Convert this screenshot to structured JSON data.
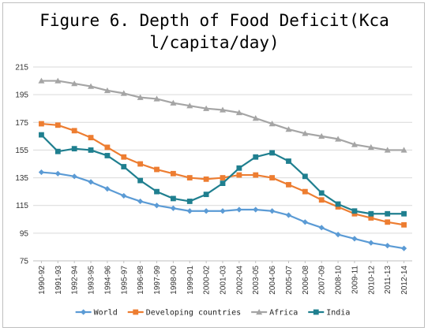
{
  "chart_data": {
    "type": "line",
    "title": "Figure 6. Depth of Food Deficit(Kcal/capita/day)",
    "title_lines": [
      "Figure 6. Depth of Food Deficit(Kca",
      "l/capita/day)"
    ],
    "x": [
      "1990-92",
      "1991-93",
      "1992-94",
      "1993-95",
      "1994-96",
      "1995-97",
      "1996-98",
      "1997-99",
      "1998-00",
      "1999-01",
      "2000-02",
      "2001-03",
      "2002-04",
      "2003-05",
      "2004-06",
      "2005-07",
      "2006-08",
      "2007-09",
      "2008-10",
      "2009-11",
      "2010-12",
      "2011-13",
      "2012-14"
    ],
    "ylim": [
      75,
      215
    ],
    "yticks": [
      75,
      95,
      115,
      135,
      155,
      175,
      195,
      215
    ],
    "grid": true,
    "legend_position": "bottom",
    "series": [
      {
        "name": "World",
        "color": "#5b9bd5",
        "marker": "diamond",
        "values": [
          139,
          138,
          136,
          132,
          127,
          122,
          118,
          115,
          113,
          111,
          111,
          111,
          112,
          112,
          111,
          108,
          103,
          99,
          94,
          91,
          88,
          86,
          84
        ]
      },
      {
        "name": "Developing countries",
        "color": "#ed7d31",
        "marker": "square",
        "values": [
          174,
          173,
          169,
          164,
          157,
          150,
          145,
          141,
          138,
          135,
          134,
          135,
          137,
          137,
          135,
          130,
          125,
          119,
          114,
          109,
          106,
          103,
          101
        ]
      },
      {
        "name": "Africa",
        "color": "#a5a5a5",
        "marker": "triangle",
        "values": [
          205,
          205,
          203,
          201,
          198,
          196,
          193,
          192,
          189,
          187,
          185,
          184,
          182,
          178,
          174,
          170,
          167,
          165,
          163,
          159,
          157,
          155,
          155
        ]
      },
      {
        "name": "India",
        "color": "#1f7f8f",
        "marker": "square",
        "values": [
          166,
          154,
          156,
          155,
          151,
          143,
          133,
          125,
          120,
          118,
          123,
          131,
          142,
          150,
          153,
          147,
          136,
          124,
          116,
          111,
          109,
          109,
          109
        ]
      }
    ]
  }
}
